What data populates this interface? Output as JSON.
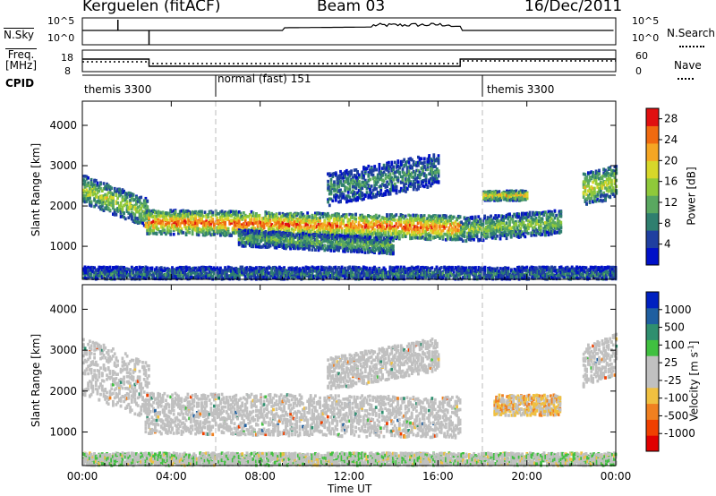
{
  "header": {
    "station": "Kerguelen (fitACF)",
    "beam": "Beam 03",
    "date": "16/Dec/2011"
  },
  "noise_panel": {
    "left_label": "N.Sky",
    "right_label": "N.Search",
    "left_ticks": [
      "10^5",
      "10^0"
    ],
    "right_ticks": [
      "10^5",
      "10^0"
    ]
  },
  "freq_panel": {
    "left_label": "Freq.",
    "left_unit": "[MHz]",
    "right_label": "Nave",
    "left_ticks": [
      "18",
      "8"
    ],
    "right_ticks": [
      "60",
      "0"
    ]
  },
  "cpid": {
    "label": "CPID",
    "segments": [
      {
        "name": "themis 3300",
        "start_h": 0,
        "end_h": 6
      },
      {
        "name": "normal (fast) 151",
        "start_h": 6,
        "end_h": 18
      },
      {
        "name": "themis 3300",
        "start_h": 18,
        "end_h": 24
      }
    ]
  },
  "colors": {
    "power_scale": [
      "#0010c8",
      "#1f3fa0",
      "#2f7f6f",
      "#5aa860",
      "#8fc93a",
      "#d7d72a",
      "#f5a623",
      "#f06a10",
      "#e01010"
    ],
    "velocity_scale": [
      "#e00000",
      "#f04000",
      "#f08020",
      "#f0c040",
      "#c0c0c0",
      "#c0c0c0",
      "#40c040",
      "#2f8f6f",
      "#1f5fa0",
      "#0020c0"
    ],
    "scatter_grey": "#c0c0c0"
  },
  "chart_data": [
    {
      "type": "heatmap",
      "title": "",
      "xlabel": "",
      "ylabel": "Slant Range [km]",
      "x_ticks": [
        "00:00",
        "04:00",
        "08:00",
        "12:00",
        "16:00",
        "20:00",
        "00:00"
      ],
      "y_ticks": [
        "1000",
        "2000",
        "3000",
        "4000"
      ],
      "xlim_hours": [
        0,
        24
      ],
      "ylim_km": [
        180,
        4600
      ],
      "colorbar": {
        "label": "Power [dB]",
        "ticks": [
          "28",
          "24",
          "20",
          "16",
          "12",
          "8",
          "4"
        ],
        "range": [
          0,
          30
        ]
      },
      "scatter_bands": [
        {
          "start_h": 0.0,
          "end_h": 3.0,
          "center_km_start": 2400,
          "center_km_end": 1800,
          "width_km": 350,
          "level_db": 17
        },
        {
          "start_h": 2.8,
          "end_h": 17.0,
          "center_km_start": 1600,
          "center_km_end": 1450,
          "width_km": 300,
          "level_db": 26
        },
        {
          "start_h": 7.0,
          "end_h": 14.0,
          "center_km_start": 1200,
          "center_km_end": 1000,
          "width_km": 200,
          "level_db": 13
        },
        {
          "start_h": 11.0,
          "end_h": 16.0,
          "center_km_start": 2400,
          "center_km_end": 2900,
          "width_km": 400,
          "level_db": 10
        },
        {
          "start_h": 17.0,
          "end_h": 21.5,
          "center_km_start": 1400,
          "center_km_end": 1600,
          "width_km": 300,
          "level_db": 15
        },
        {
          "start_h": 18.0,
          "end_h": 20.0,
          "center_km_start": 2250,
          "center_km_end": 2250,
          "width_km": 120,
          "level_db": 21
        },
        {
          "start_h": 22.5,
          "end_h": 24.0,
          "center_km_start": 2400,
          "center_km_end": 2600,
          "width_km": 400,
          "level_db": 18
        },
        {
          "start_h": 0.0,
          "end_h": 24.0,
          "center_km_start": 300,
          "center_km_end": 300,
          "width_km": 180,
          "level_db": 8
        }
      ]
    },
    {
      "type": "heatmap",
      "title": "",
      "xlabel": "Time UT",
      "ylabel": "Slant Range [km]",
      "x_ticks": [
        "00:00",
        "04:00",
        "08:00",
        "12:00",
        "16:00",
        "20:00",
        "00:00"
      ],
      "y_ticks": [
        "1000",
        "2000",
        "3000",
        "4000"
      ],
      "xlim_hours": [
        0,
        24
      ],
      "ylim_km": [
        180,
        4600
      ],
      "colorbar": {
        "label": "Velocity [m s^-1]",
        "ticks": [
          "1000",
          "500",
          "100",
          "25",
          "-25",
          "-100",
          "-500",
          "-1000"
        ],
        "range": [
          -1000,
          1000
        ]
      },
      "scatter_bands": [
        {
          "start_h": 0.0,
          "end_h": 3.0,
          "center_km_start": 2600,
          "center_km_end": 2000,
          "width_km": 700,
          "level_ms": 0
        },
        {
          "start_h": 2.8,
          "end_h": 17.0,
          "center_km_start": 1450,
          "center_km_end": 1350,
          "width_km": 500,
          "level_ms": 0
        },
        {
          "start_h": 11.0,
          "end_h": 16.0,
          "center_km_start": 2400,
          "center_km_end": 2900,
          "width_km": 400,
          "level_ms": 0
        },
        {
          "start_h": 18.5,
          "end_h": 21.5,
          "center_km_start": 1650,
          "center_km_end": 1650,
          "width_km": 250,
          "level_ms": -200
        },
        {
          "start_h": 22.5,
          "end_h": 24.0,
          "center_km_start": 2600,
          "center_km_end": 2900,
          "width_km": 500,
          "level_ms": 0
        },
        {
          "start_h": 0.0,
          "end_h": 24.0,
          "center_km_start": 300,
          "center_km_end": 300,
          "width_km": 180,
          "level_ms": 50
        }
      ]
    }
  ]
}
